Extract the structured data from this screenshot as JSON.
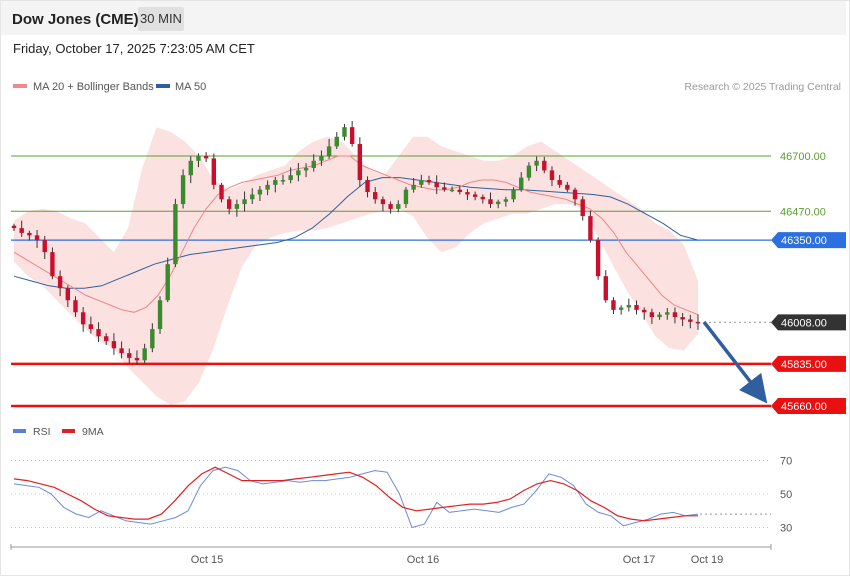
{
  "header": {
    "title": "Dow Jones (CME)",
    "timeframe": "30 MIN",
    "datetime": "Friday, October 17, 2025 7:23:05 AM CET"
  },
  "copyright": "Research © 2025 Trading Central",
  "legend_main": [
    {
      "label": "MA 20 + Bollinger Bands",
      "color": "#f08a8a"
    },
    {
      "label": "MA 50",
      "color": "#2f5f9e"
    }
  ],
  "legend_rsi": [
    {
      "label": "RSI",
      "color": "#5b7fd6"
    },
    {
      "label": "9MA",
      "color": "#e02020"
    }
  ],
  "x_ticks": [
    "Oct 15",
    "Oct 16",
    "Oct 17",
    "Oct 19"
  ],
  "rsi_ticks": [
    "70",
    "50",
    "30"
  ],
  "levels": [
    {
      "label": "46700.00",
      "value": 46700,
      "kind": "resistance",
      "color": "#5aa02c"
    },
    {
      "label": "46470.00",
      "value": 46470,
      "kind": "resistance",
      "color": "#5aa02c"
    },
    {
      "label": "46350.00",
      "value": 46350,
      "kind": "pivot",
      "color": "#2b6fe0"
    },
    {
      "label": "46008.00",
      "value": 46008,
      "kind": "last",
      "color": "#333333"
    },
    {
      "label": "45835.00",
      "value": 45835,
      "kind": "support",
      "color": "#e81010"
    },
    {
      "label": "45660.00",
      "value": 45660,
      "kind": "support",
      "color": "#e81010"
    }
  ],
  "chart_data": {
    "type": "candlestick",
    "instrument": "Dow Jones (CME)",
    "timeframe": "30 MIN",
    "price_range": [
      45660,
      46840
    ],
    "closes": [
      46400,
      46380,
      46370,
      46350,
      46300,
      46200,
      46150,
      46100,
      46050,
      46000,
      45980,
      45950,
      45930,
      45900,
      45880,
      45860,
      45850,
      45900,
      45980,
      46100,
      46250,
      46500,
      46620,
      46680,
      46700,
      46690,
      46580,
      46520,
      46480,
      46500,
      46520,
      46540,
      46560,
      46580,
      46600,
      46600,
      46620,
      46640,
      46650,
      46680,
      46700,
      46740,
      46780,
      46820,
      46750,
      46600,
      46550,
      46520,
      46500,
      46480,
      46500,
      46560,
      46580,
      46600,
      46590,
      46570,
      46560,
      46560,
      46550,
      46540,
      46530,
      46520,
      46500,
      46510,
      46520,
      46560,
      46610,
      46660,
      46680,
      46640,
      46600,
      46580,
      46560,
      46520,
      46450,
      46350,
      46200,
      46100,
      46060,
      46070,
      46080,
      46060,
      46050,
      46030,
      46040,
      46050,
      46030,
      46020,
      46010,
      46008
    ],
    "ma20": [
      46300,
      46270,
      46240,
      46210,
      46180,
      46150,
      46120,
      46100,
      46080,
      46060,
      46050,
      46070,
      46120,
      46200,
      46300,
      46400,
      46480,
      46540,
      46570,
      46590,
      46600,
      46610,
      46620,
      46640,
      46650,
      46660,
      46680,
      46700,
      46700,
      46660,
      46640,
      46620,
      46600,
      46580,
      46570,
      46560,
      46560,
      46570,
      46590,
      46600,
      46600,
      46590,
      46570,
      46550,
      46540,
      46530,
      46520,
      46500,
      46480,
      46440,
      46380,
      46300,
      46240,
      46180,
      46120,
      46080,
      46060,
      46040
    ],
    "ma50": [
      46200,
      46180,
      46160,
      46150,
      46150,
      46160,
      46190,
      46220,
      46250,
      46270,
      46290,
      46300,
      46310,
      46320,
      46330,
      46340,
      46360,
      46400,
      46460,
      46530,
      46590,
      46610,
      46610,
      46600,
      46590,
      46580,
      46570,
      46565,
      46560,
      46560,
      46555,
      46550,
      46545,
      46540,
      46530,
      46500,
      46460,
      46420,
      46370,
      46350
    ],
    "bollinger_upper_peak": 46820,
    "bollinger_lower_trough": 45665,
    "forecast": {
      "direction": "down",
      "from": 46008,
      "target": 45660
    },
    "rsi": {
      "ticks": [
        70,
        50,
        30
      ],
      "rsi_values": [
        56,
        55,
        54,
        50,
        42,
        38,
        36,
        40,
        37,
        34,
        33,
        32,
        34,
        36,
        40,
        55,
        64,
        66,
        64,
        58,
        56,
        57,
        58,
        57,
        58,
        58,
        59,
        60,
        62,
        64,
        63,
        50,
        30,
        32,
        45,
        39,
        40,
        41,
        40,
        39,
        42,
        44,
        52,
        62,
        60,
        55,
        44,
        39,
        37,
        31,
        33,
        35,
        38,
        39,
        37,
        38
      ],
      "ma9_values": [
        59,
        58,
        56,
        54,
        50,
        46,
        41,
        37,
        36,
        35,
        35,
        38,
        46,
        55,
        62,
        66,
        62,
        58,
        58,
        58,
        58,
        59,
        60,
        61,
        62,
        63,
        60,
        55,
        48,
        42,
        40,
        41,
        42,
        43,
        44,
        44,
        45,
        47,
        52,
        56,
        58,
        56,
        52,
        46,
        42,
        37,
        35,
        34,
        35,
        36,
        37,
        37
      ]
    }
  }
}
